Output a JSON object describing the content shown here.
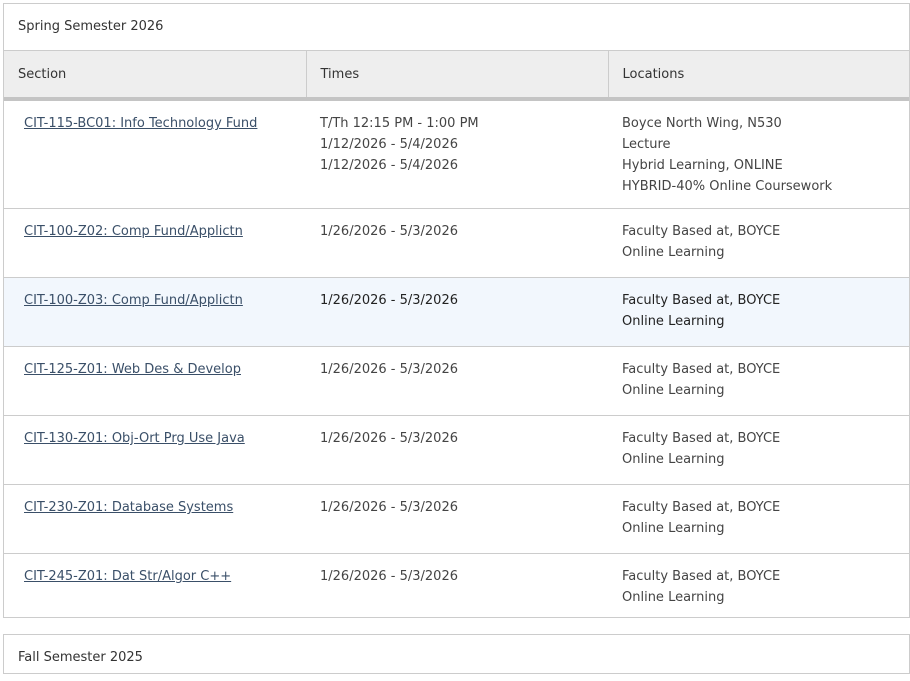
{
  "spring": {
    "title": "Spring Semester 2026",
    "headers": [
      "Section",
      "Times",
      "Locations"
    ],
    "rows": [
      {
        "section": "CIT-115-BC01: Info Technology Fund",
        "times": [
          "T/Th 12:15 PM - 1:00 PM",
          "1/12/2026 - 5/4/2026",
          "1/12/2026 - 5/4/2026"
        ],
        "locations": [
          "Boyce North Wing, N530",
          "Lecture",
          "Hybrid Learning, ONLINE",
          "HYBRID-40% Online Coursework"
        ]
      },
      {
        "section": "CIT-100-Z02: Comp Fund/Applictn",
        "times": [
          "1/26/2026 - 5/3/2026"
        ],
        "locations": [
          "Faculty Based at, BOYCE",
          "Online Learning"
        ]
      },
      {
        "section": "CIT-100-Z03: Comp Fund/Applictn",
        "times": [
          "1/26/2026 - 5/3/2026"
        ],
        "locations": [
          "Faculty Based at, BOYCE",
          "Online Learning"
        ]
      },
      {
        "section": "CIT-125-Z01: Web Des & Develop",
        "times": [
          "1/26/2026 - 5/3/2026"
        ],
        "locations": [
          "Faculty Based at, BOYCE",
          "Online Learning"
        ]
      },
      {
        "section": "CIT-130-Z01: Obj-Ort Prg Use Java",
        "times": [
          "1/26/2026 - 5/3/2026"
        ],
        "locations": [
          "Faculty Based at, BOYCE",
          "Online Learning"
        ]
      },
      {
        "section": "CIT-230-Z01: Database Systems",
        "times": [
          "1/26/2026 - 5/3/2026"
        ],
        "locations": [
          "Faculty Based at, BOYCE",
          "Online Learning"
        ]
      },
      {
        "section": "CIT-245-Z01: Dat Str/Algor C++",
        "times": [
          "1/26/2026 - 5/3/2026"
        ],
        "locations": [
          "Faculty Based at, BOYCE",
          "Online Learning"
        ]
      }
    ]
  },
  "fall": {
    "title": "Fall Semester 2025"
  }
}
